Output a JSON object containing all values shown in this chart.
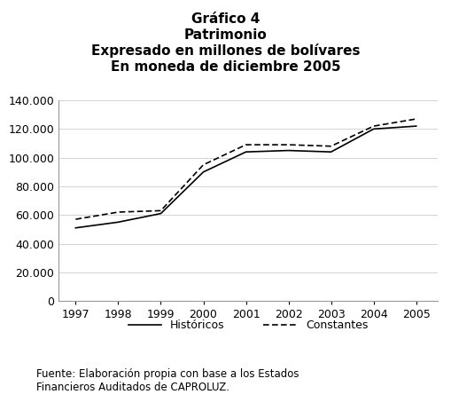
{
  "title_line1": "Gráfico 4",
  "title_line2": "Patrimonio",
  "title_line3": "Expresado en millones de bolívares",
  "title_line4": "En moneda de diciembre 2005",
  "footnote": "Fuente: Elaboración propia con base a los Estados\nFinancieros Auditados de CAPROLUZ.",
  "years": [
    1997,
    1998,
    1999,
    2000,
    2001,
    2002,
    2003,
    2004,
    2005
  ],
  "historicos": [
    51000,
    55000,
    61000,
    90000,
    104000,
    105000,
    104000,
    120000,
    122000
  ],
  "constantes": [
    57000,
    62000,
    63000,
    95000,
    109000,
    109000,
    108000,
    122000,
    127000
  ],
  "ylim": [
    0,
    140000
  ],
  "yticks": [
    0,
    20000,
    40000,
    60000,
    80000,
    100000,
    120000,
    140000
  ],
  "background_color": "#ffffff",
  "line_color": "#000000",
  "grid_color": "#cccccc",
  "legend_historicos": "Históricos",
  "legend_constantes": "Constantes",
  "title_fontsize": 11,
  "tick_fontsize": 9,
  "legend_fontsize": 9,
  "footnote_fontsize": 8.5
}
